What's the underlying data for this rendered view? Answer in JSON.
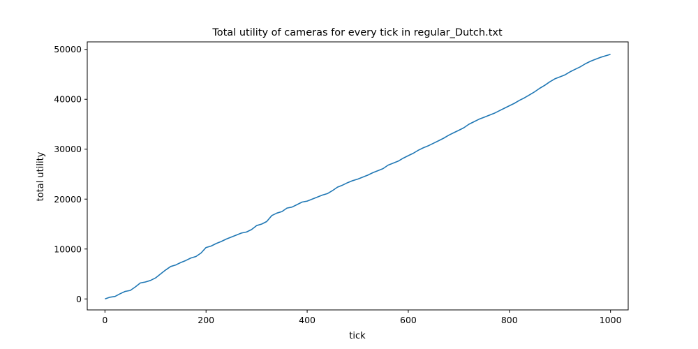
{
  "chart_data": {
    "type": "line",
    "title": "Total utility of cameras for every tick in regular_Dutch.txt",
    "xlabel": "tick",
    "ylabel": "total utility",
    "xlim": [
      -35,
      1035
    ],
    "ylim": [
      -2200,
      51500
    ],
    "x_ticks": [
      0,
      200,
      400,
      600,
      800,
      1000
    ],
    "y_ticks": [
      0,
      10000,
      20000,
      30000,
      40000,
      50000
    ],
    "grid": false,
    "legend": "none",
    "series": [
      {
        "color": "#1f77b4",
        "x": [
          0,
          10,
          20,
          30,
          40,
          50,
          60,
          70,
          80,
          90,
          100,
          110,
          120,
          130,
          140,
          150,
          160,
          170,
          180,
          190,
          200,
          210,
          220,
          230,
          240,
          250,
          260,
          270,
          280,
          290,
          300,
          310,
          320,
          330,
          340,
          350,
          360,
          370,
          380,
          390,
          400,
          410,
          420,
          430,
          440,
          450,
          460,
          470,
          480,
          490,
          500,
          510,
          520,
          530,
          540,
          550,
          560,
          570,
          580,
          590,
          600,
          610,
          620,
          630,
          640,
          650,
          660,
          670,
          680,
          690,
          700,
          710,
          720,
          730,
          740,
          750,
          760,
          770,
          780,
          790,
          800,
          810,
          820,
          830,
          840,
          850,
          860,
          870,
          880,
          890,
          900,
          910,
          920,
          930,
          940,
          950,
          960,
          970,
          980,
          990,
          1000
        ],
        "values": [
          0,
          350,
          500,
          1050,
          1500,
          1700,
          2400,
          3200,
          3400,
          3700,
          4200,
          5000,
          5800,
          6500,
          6800,
          7300,
          7700,
          8200,
          8500,
          9200,
          10300,
          10600,
          11100,
          11500,
          12000,
          12400,
          12800,
          13200,
          13400,
          13900,
          14700,
          15000,
          15500,
          16700,
          17200,
          17500,
          18200,
          18400,
          18900,
          19400,
          19600,
          20000,
          20400,
          20800,
          21100,
          21700,
          22400,
          22800,
          23300,
          23700,
          24000,
          24400,
          24800,
          25300,
          25700,
          26100,
          26800,
          27200,
          27600,
          28200,
          28700,
          29200,
          29800,
          30300,
          30700,
          31200,
          31700,
          32200,
          32800,
          33300,
          33800,
          34300,
          35000,
          35500,
          36000,
          36400,
          36800,
          37200,
          37700,
          38200,
          38700,
          39200,
          39800,
          40300,
          40900,
          41500,
          42200,
          42800,
          43500,
          44100,
          44500,
          44900,
          45500,
          46000,
          46500,
          47100,
          47600,
          48000,
          48400,
          48700,
          49000
        ]
      }
    ]
  }
}
